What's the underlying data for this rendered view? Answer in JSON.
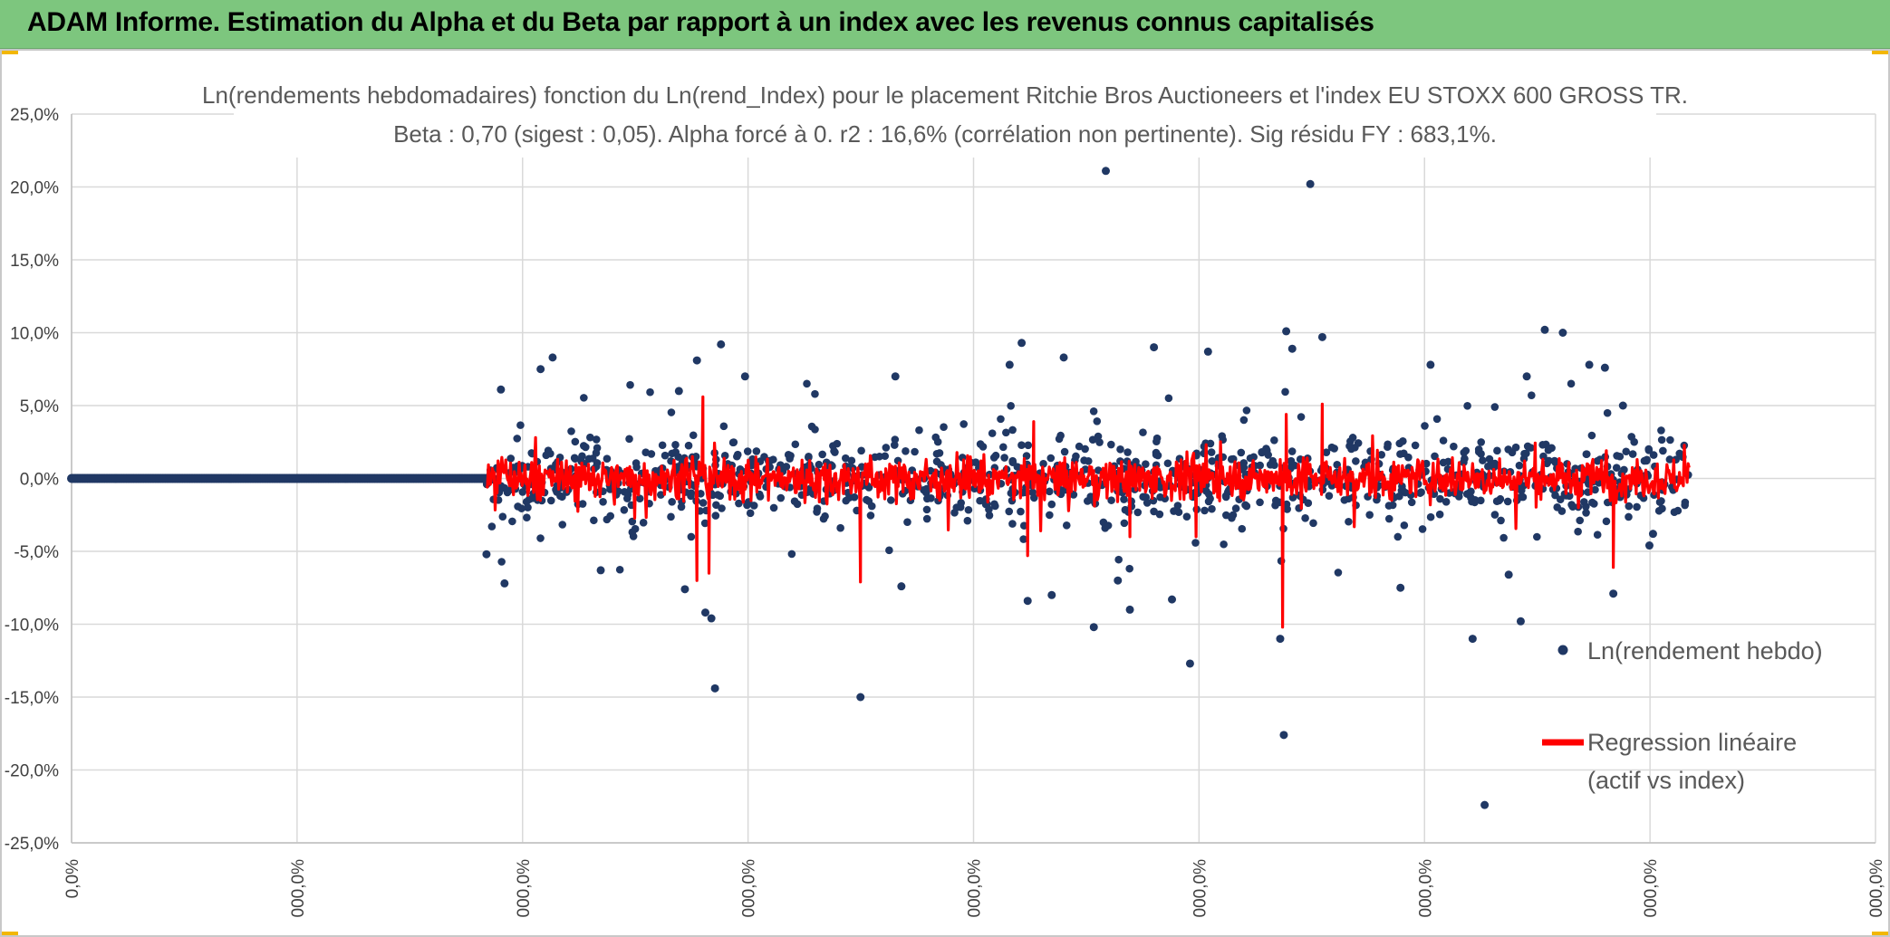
{
  "banner": {
    "title": "ADAM Informe. Estimation du Alpha et du Beta par rapport à un index avec les revenus connus capitalisés",
    "background_color": "#7dc67e",
    "corner_color": "#f2b705"
  },
  "chart_data": {
    "type": "scatter",
    "title": "Ln(rendements hebdomadaires) fonction du Ln(rend_Index) pour le placement Ritchie Bros Auctioneers  et l'index EU STOXX 600 GROSS TR.",
    "subtitle": "Beta : 0,70 (sigest : 0,05). Alpha forcé à 0. r2 : 16,6% (corrélation non pertinente). Sig résidu FY : 683,1%.",
    "xlabel": "",
    "ylabel": "",
    "x_tick_labels": [
      "0,0%",
      "000,0%",
      "000,0%",
      "000,0%",
      "000,0%",
      "000,0%",
      "000,0%",
      "000,0%",
      "000,0%"
    ],
    "y_tick_labels": [
      "25,0%",
      "20,0%",
      "15,0%",
      "10,0%",
      "5,0%",
      "0,0%",
      "-5,0%",
      "-10,0%",
      "-15,0%",
      "-20,0%",
      "-25,0%"
    ],
    "xlim": [
      0,
      1500
    ],
    "ylim": [
      -25,
      25
    ],
    "grid": true,
    "legend_position": "right",
    "series": [
      {
        "name": "Ln(rendement hebdo)",
        "kind": "points",
        "color": "#203864",
        "flat_zero_segment": {
          "x_from": 0,
          "x_to": 345
        },
        "spread_range": {
          "x_from": 345,
          "x_to": 1345,
          "typical_abs": 2.0,
          "count": 1100
        },
        "outliers": [
          {
            "x": 345,
            "y": -5.2
          },
          {
            "x": 357,
            "y": 6.1
          },
          {
            "x": 360,
            "y": -7.2
          },
          {
            "x": 390,
            "y": 7.5
          },
          {
            "x": 400,
            "y": 8.3
          },
          {
            "x": 440,
            "y": -6.3
          },
          {
            "x": 505,
            "y": 6.0
          },
          {
            "x": 510,
            "y": -7.6
          },
          {
            "x": 527,
            "y": -9.2
          },
          {
            "x": 532,
            "y": -9.6
          },
          {
            "x": 535,
            "y": -14.4
          },
          {
            "x": 540,
            "y": 9.2
          },
          {
            "x": 520,
            "y": 8.1
          },
          {
            "x": 560,
            "y": 7.0
          },
          {
            "x": 656,
            "y": -15.0
          },
          {
            "x": 685,
            "y": 7.0
          },
          {
            "x": 690,
            "y": -7.4
          },
          {
            "x": 780,
            "y": 7.8
          },
          {
            "x": 790,
            "y": 9.3
          },
          {
            "x": 795,
            "y": -8.4
          },
          {
            "x": 815,
            "y": -8.0
          },
          {
            "x": 825,
            "y": 8.3
          },
          {
            "x": 850,
            "y": -10.2
          },
          {
            "x": 860,
            "y": 21.1
          },
          {
            "x": 870,
            "y": -7.0
          },
          {
            "x": 880,
            "y": -9.0
          },
          {
            "x": 900,
            "y": 9.0
          },
          {
            "x": 915,
            "y": -8.3
          },
          {
            "x": 930,
            "y": -12.7
          },
          {
            "x": 945,
            "y": 8.7
          },
          {
            "x": 1005,
            "y": -11.0
          },
          {
            "x": 1008,
            "y": -17.6
          },
          {
            "x": 1010,
            "y": 10.1
          },
          {
            "x": 1015,
            "y": 8.9
          },
          {
            "x": 1030,
            "y": 20.2
          },
          {
            "x": 1040,
            "y": 9.7
          },
          {
            "x": 1105,
            "y": -7.5
          },
          {
            "x": 1130,
            "y": 7.8
          },
          {
            "x": 1165,
            "y": -11.0
          },
          {
            "x": 1175,
            "y": -22.4
          },
          {
            "x": 1195,
            "y": -6.6
          },
          {
            "x": 1205,
            "y": -9.8
          },
          {
            "x": 1210,
            "y": 7.0
          },
          {
            "x": 1225,
            "y": 10.2
          },
          {
            "x": 1240,
            "y": 10.0
          },
          {
            "x": 1262,
            "y": 7.8
          },
          {
            "x": 1275,
            "y": 7.6
          },
          {
            "x": 1282,
            "y": -7.9
          },
          {
            "x": 1290,
            "y": 5.0
          },
          {
            "x": 1312,
            "y": -4.6
          },
          {
            "x": 1315,
            "y": -3.8
          }
        ]
      },
      {
        "name": "Regression linéaire\n(actif vs index)",
        "kind": "line",
        "color": "#ff0000",
        "x_from": 345,
        "x_to": 1345,
        "typical_abs": 1.2,
        "spikes": [
          {
            "x": 520,
            "y": -7.0
          },
          {
            "x": 525,
            "y": 5.6
          },
          {
            "x": 530,
            "y": -6.5
          },
          {
            "x": 656,
            "y": -7.1
          },
          {
            "x": 795,
            "y": -5.3
          },
          {
            "x": 800,
            "y": 3.9
          },
          {
            "x": 880,
            "y": -4.0
          },
          {
            "x": 935,
            "y": -4.0
          },
          {
            "x": 1007,
            "y": -10.2
          },
          {
            "x": 1010,
            "y": 4.4
          },
          {
            "x": 1040,
            "y": 5.1
          },
          {
            "x": 1282,
            "y": -6.1
          }
        ]
      }
    ]
  }
}
